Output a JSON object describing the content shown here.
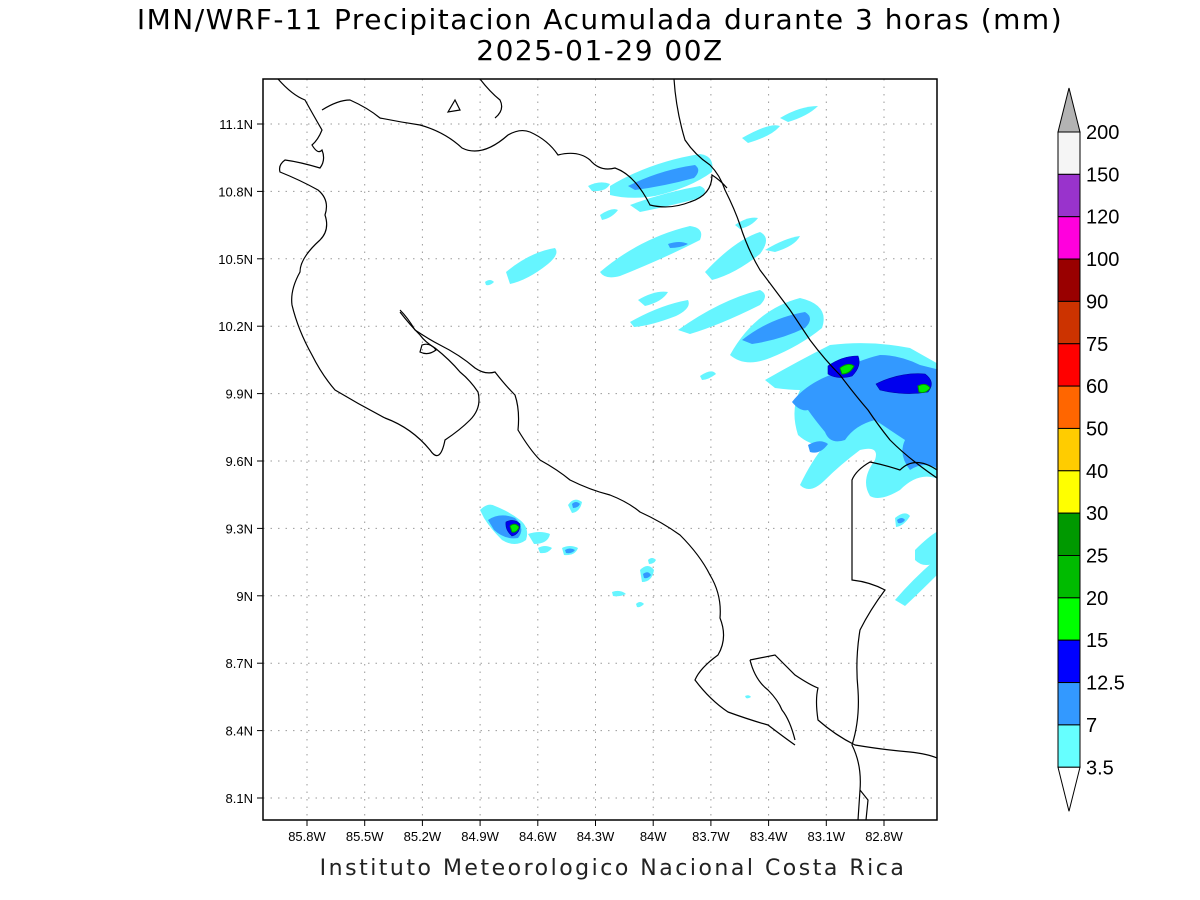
{
  "title": {
    "line1": "IMN/WRF-11 Precipitacion Acumulada durante 3 horas (mm)",
    "line2": "2025-01-29 00Z"
  },
  "footer": "Instituto Meteorologico Nacional Costa Rica",
  "axes": {
    "lon_ticks": [
      "85.8W",
      "85.5W",
      "85.2W",
      "84.9W",
      "84.6W",
      "84.3W",
      "84W",
      "83.7W",
      "83.4W",
      "83.1W",
      "82.8W"
    ],
    "lat_ticks": [
      "11.1N",
      "10.8N",
      "10.5N",
      "10.2N",
      "9.9N",
      "9.6N",
      "9.3N",
      "9N",
      "8.7N",
      "8.4N",
      "8.1N"
    ],
    "grid": true
  },
  "colorbar": {
    "labels": [
      "200",
      "150",
      "120",
      "100",
      "90",
      "75",
      "60",
      "50",
      "40",
      "30",
      "25",
      "20",
      "15",
      "12.5",
      "7",
      "3.5"
    ],
    "colors": [
      "#f5f5f5",
      "#9933cc",
      "#ff00dd",
      "#990000",
      "#cc3300",
      "#ff0000",
      "#ff6600",
      "#ffcc00",
      "#ffff00",
      "#009900",
      "#00bb00",
      "#00ff00",
      "#0000ff",
      "#3399ff",
      "#66ffff"
    ],
    "over_color": "#b3b3b3",
    "under_color": "#ffffff"
  },
  "map_colors": {
    "light_cyan": "#66f5ff",
    "cyan": "#66e0ff",
    "mid_blue": "#3399ff",
    "deep_blue": "#0000ee",
    "green": "#00ee00",
    "dark_green": "#009900",
    "coastline": "#000000"
  }
}
